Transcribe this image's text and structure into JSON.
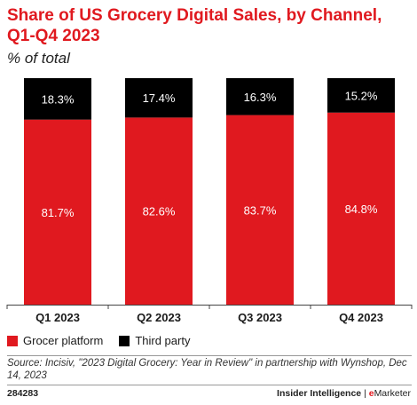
{
  "chart_data": {
    "type": "bar",
    "stacked": true,
    "title": "Share of US Grocery Digital Sales, by Channel, Q1-Q4 2023",
    "subtitle": "% of total",
    "categories": [
      "Q1 2023",
      "Q2 2023",
      "Q3 2023",
      "Q4 2023"
    ],
    "series": [
      {
        "name": "Grocer platform",
        "color": "#e0191f",
        "values": [
          81.7,
          82.6,
          83.7,
          84.8
        ],
        "labels": [
          "81.7%",
          "82.6%",
          "83.7%",
          "84.8%"
        ]
      },
      {
        "name": "Third party",
        "color": "#000000",
        "values": [
          18.3,
          17.4,
          16.3,
          15.2
        ],
        "labels": [
          "18.3%",
          "17.4%",
          "16.3%",
          "15.2%"
        ]
      }
    ],
    "ylim": [
      0,
      100
    ],
    "legend_position": "bottom-left",
    "grid": false
  },
  "source": "Source: Incisiv, \"2023 Digital Grocery: Year in Review\" in partnership with Wynshop, Dec 14, 2023",
  "chart_id": "284283",
  "brand": {
    "left": "Insider Intelligence",
    "separator": " | ",
    "right_e": "e",
    "right_rest": "Marketer"
  }
}
